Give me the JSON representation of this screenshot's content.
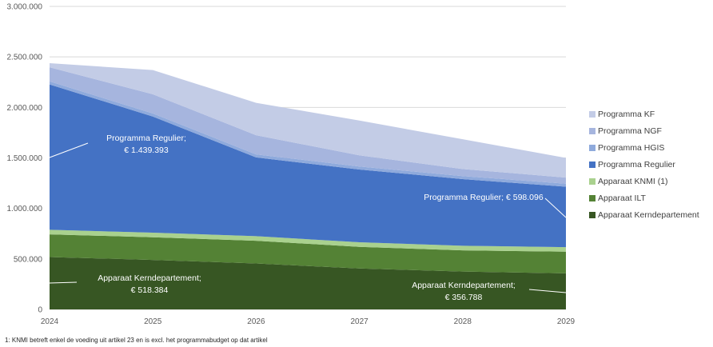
{
  "chart_data": {
    "type": "area",
    "stacked": true,
    "x": [
      "2024",
      "2025",
      "2026",
      "2027",
      "2028",
      "2029"
    ],
    "ylim": [
      0,
      3000000
    ],
    "yticks": [
      "0",
      "500.000",
      "1.000.000",
      "1.500.000",
      "2.000.000",
      "2.500.000",
      "3.000.000"
    ],
    "grid": true,
    "legend_position": "right",
    "series": [
      {
        "name": "Apparaat Kerndepartement",
        "color": "#375623",
        "values": [
          518384,
          490000,
          455000,
          405000,
          375000,
          356788
        ]
      },
      {
        "name": "Apparaat ILT",
        "color": "#548235",
        "values": [
          225000,
          225000,
          225000,
          215000,
          210000,
          215000
        ]
      },
      {
        "name": "Apparaat KNMI (1)",
        "color": "#a9d18e",
        "values": [
          45000,
          45000,
          45000,
          45000,
          45000,
          45000
        ]
      },
      {
        "name": "Programma Regulier",
        "color": "#4472c4",
        "values": [
          1439393,
          1150000,
          780000,
          720000,
          660000,
          598096
        ]
      },
      {
        "name": "Programma HGIS",
        "color": "#8faadc",
        "values": [
          30000,
          30000,
          30000,
          30000,
          30000,
          30000
        ]
      },
      {
        "name": "Programma NGF",
        "color": "#a6b5de",
        "values": [
          140000,
          190000,
          190000,
          110000,
          70000,
          60000
        ]
      },
      {
        "name": "Programma KF",
        "color": "#c3cce6",
        "values": [
          40000,
          240000,
          320000,
          345000,
          295000,
          195000
        ]
      }
    ],
    "annotations": [
      {
        "lines": [
          "Programma Regulier;",
          "€ 1.439.393"
        ]
      },
      {
        "lines": [
          "Programma Regulier; € 598.096"
        ]
      },
      {
        "lines": [
          "Apparaat Kerndepartement;",
          "€ 518.384"
        ]
      },
      {
        "lines": [
          "Apparaat Kerndepartement;",
          "€ 356.788"
        ]
      }
    ]
  },
  "footnote": "1: KNMI betreft enkel de voeding uit artikel 23 en is excl. het programmabudget op dat artikel"
}
